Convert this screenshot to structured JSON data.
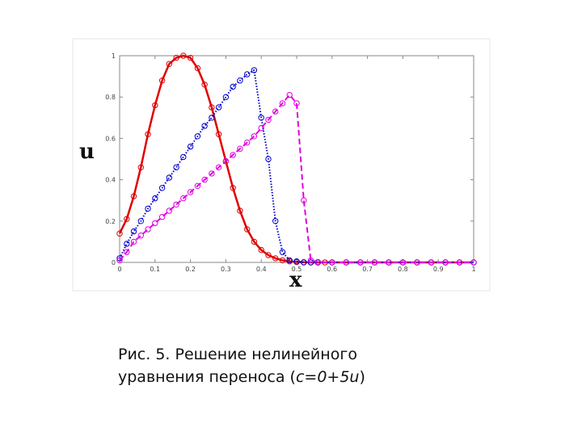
{
  "chart_data": {
    "type": "line",
    "title": "",
    "xlabel": "x",
    "ylabel": "u",
    "xlim": [
      0,
      1
    ],
    "ylim": [
      0,
      1.0
    ],
    "x_ticks": [
      "0",
      "0.1",
      "0.2",
      "0.3",
      "0.4",
      "0.5",
      "0.6",
      "0.7",
      "0.8",
      "0.9",
      "1"
    ],
    "y_ticks": [
      "0",
      "0.2",
      "0.4",
      "0.6",
      "0.8",
      "1"
    ],
    "grid": false,
    "legend": "none",
    "series": [
      {
        "color": "#e00000",
        "style": "solid",
        "marker": "circle",
        "x": [
          0,
          0.02,
          0.04,
          0.06,
          0.08,
          0.1,
          0.12,
          0.14,
          0.16,
          0.18,
          0.2,
          0.22,
          0.24,
          0.26,
          0.28,
          0.3,
          0.32,
          0.34,
          0.36,
          0.38,
          0.4,
          0.42,
          0.44,
          0.46,
          0.48,
          0.5,
          0.52,
          0.54,
          0.56,
          0.58,
          0.6,
          0.64,
          0.68,
          0.72,
          0.76,
          0.8,
          0.84,
          0.88,
          0.92,
          0.96,
          1.0
        ],
        "y": [
          0.14,
          0.21,
          0.32,
          0.46,
          0.62,
          0.76,
          0.88,
          0.96,
          0.99,
          1.0,
          0.99,
          0.94,
          0.86,
          0.75,
          0.62,
          0.49,
          0.36,
          0.25,
          0.16,
          0.1,
          0.06,
          0.035,
          0.02,
          0.01,
          0.005,
          0.002,
          0.001,
          0,
          0,
          0,
          0,
          0,
          0,
          0,
          0,
          0,
          0,
          0,
          0,
          0,
          0
        ]
      },
      {
        "color": "#0000cc",
        "style": "dotted",
        "marker": "circle",
        "x": [
          0,
          0.02,
          0.04,
          0.06,
          0.08,
          0.1,
          0.12,
          0.14,
          0.16,
          0.18,
          0.2,
          0.22,
          0.24,
          0.26,
          0.28,
          0.3,
          0.32,
          0.34,
          0.36,
          0.38,
          0.4,
          0.42,
          0.44,
          0.46,
          0.48,
          0.5,
          0.52,
          0.54,
          0.56,
          0.6,
          0.64,
          0.68,
          0.72,
          0.76,
          0.8,
          0.84,
          0.88,
          0.92,
          0.96,
          1.0
        ],
        "y": [
          0.02,
          0.09,
          0.15,
          0.2,
          0.26,
          0.31,
          0.36,
          0.41,
          0.46,
          0.51,
          0.56,
          0.61,
          0.66,
          0.7,
          0.75,
          0.8,
          0.85,
          0.88,
          0.91,
          0.93,
          0.7,
          0.5,
          0.2,
          0.05,
          0.01,
          0.005,
          0,
          0,
          0,
          0,
          0,
          0,
          0,
          0,
          0,
          0,
          0,
          0,
          0,
          0
        ]
      },
      {
        "color": "#e000e0",
        "style": "dashed",
        "marker": "circle",
        "x": [
          0,
          0.02,
          0.04,
          0.06,
          0.08,
          0.1,
          0.12,
          0.14,
          0.16,
          0.18,
          0.2,
          0.22,
          0.24,
          0.26,
          0.28,
          0.3,
          0.32,
          0.34,
          0.36,
          0.38,
          0.4,
          0.42,
          0.44,
          0.46,
          0.48,
          0.5,
          0.52,
          0.54,
          0.56,
          0.6,
          0.64,
          0.68,
          0.72,
          0.76,
          0.8,
          0.84,
          0.88,
          0.92,
          0.96,
          1.0
        ],
        "y": [
          0.01,
          0.05,
          0.1,
          0.13,
          0.16,
          0.19,
          0.22,
          0.25,
          0.28,
          0.31,
          0.34,
          0.37,
          0.4,
          0.43,
          0.46,
          0.49,
          0.52,
          0.55,
          0.58,
          0.61,
          0.65,
          0.69,
          0.73,
          0.77,
          0.81,
          0.77,
          0.3,
          0.01,
          0.002,
          0,
          0,
          0,
          0,
          0,
          0,
          0,
          0,
          0,
          0,
          0
        ]
      }
    ]
  },
  "caption": {
    "line1": "Рис. 5. Решение нелинейного",
    "line2_text": "уравнения переноса (",
    "line2_formula": "c=0+5u",
    "line2_close": ")"
  }
}
